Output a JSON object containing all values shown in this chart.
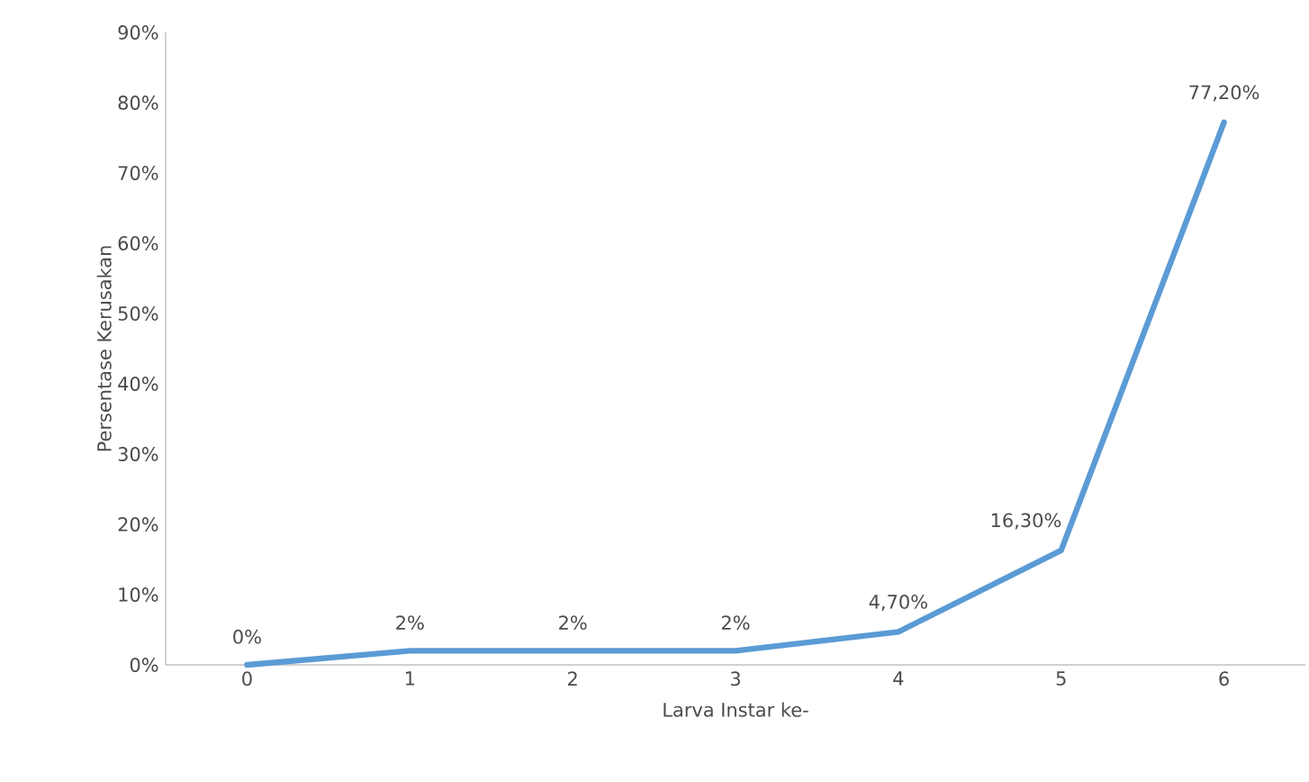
{
  "chart_data": {
    "type": "line",
    "xlabel": "Larva Instar ke-",
    "ylabel": "Persentase Kerusakan",
    "categories": [
      "0",
      "1",
      "2",
      "3",
      "4",
      "5",
      "6"
    ],
    "series": [
      {
        "color": "#5b9bd5",
        "values": [
          0,
          2,
          2,
          2,
          4.7,
          16.3,
          77.2
        ],
        "value_labels": [
          "0%",
          "2%",
          "2%",
          "2%",
          "4,70%",
          "16,30%",
          "77,20%"
        ]
      }
    ],
    "ylim": [
      0,
      90
    ],
    "yticks": [
      {
        "value": 0,
        "label": "0%"
      },
      {
        "value": 10,
        "label": "10%"
      },
      {
        "value": 20,
        "label": "20%"
      },
      {
        "value": 30,
        "label": "30%"
      },
      {
        "value": 40,
        "label": "40%"
      },
      {
        "value": 50,
        "label": "50%"
      },
      {
        "value": 60,
        "label": "60%"
      },
      {
        "value": 70,
        "label": "70%"
      },
      {
        "value": 80,
        "label": "80%"
      },
      {
        "value": 90,
        "label": "90%"
      }
    ],
    "grid": false
  }
}
